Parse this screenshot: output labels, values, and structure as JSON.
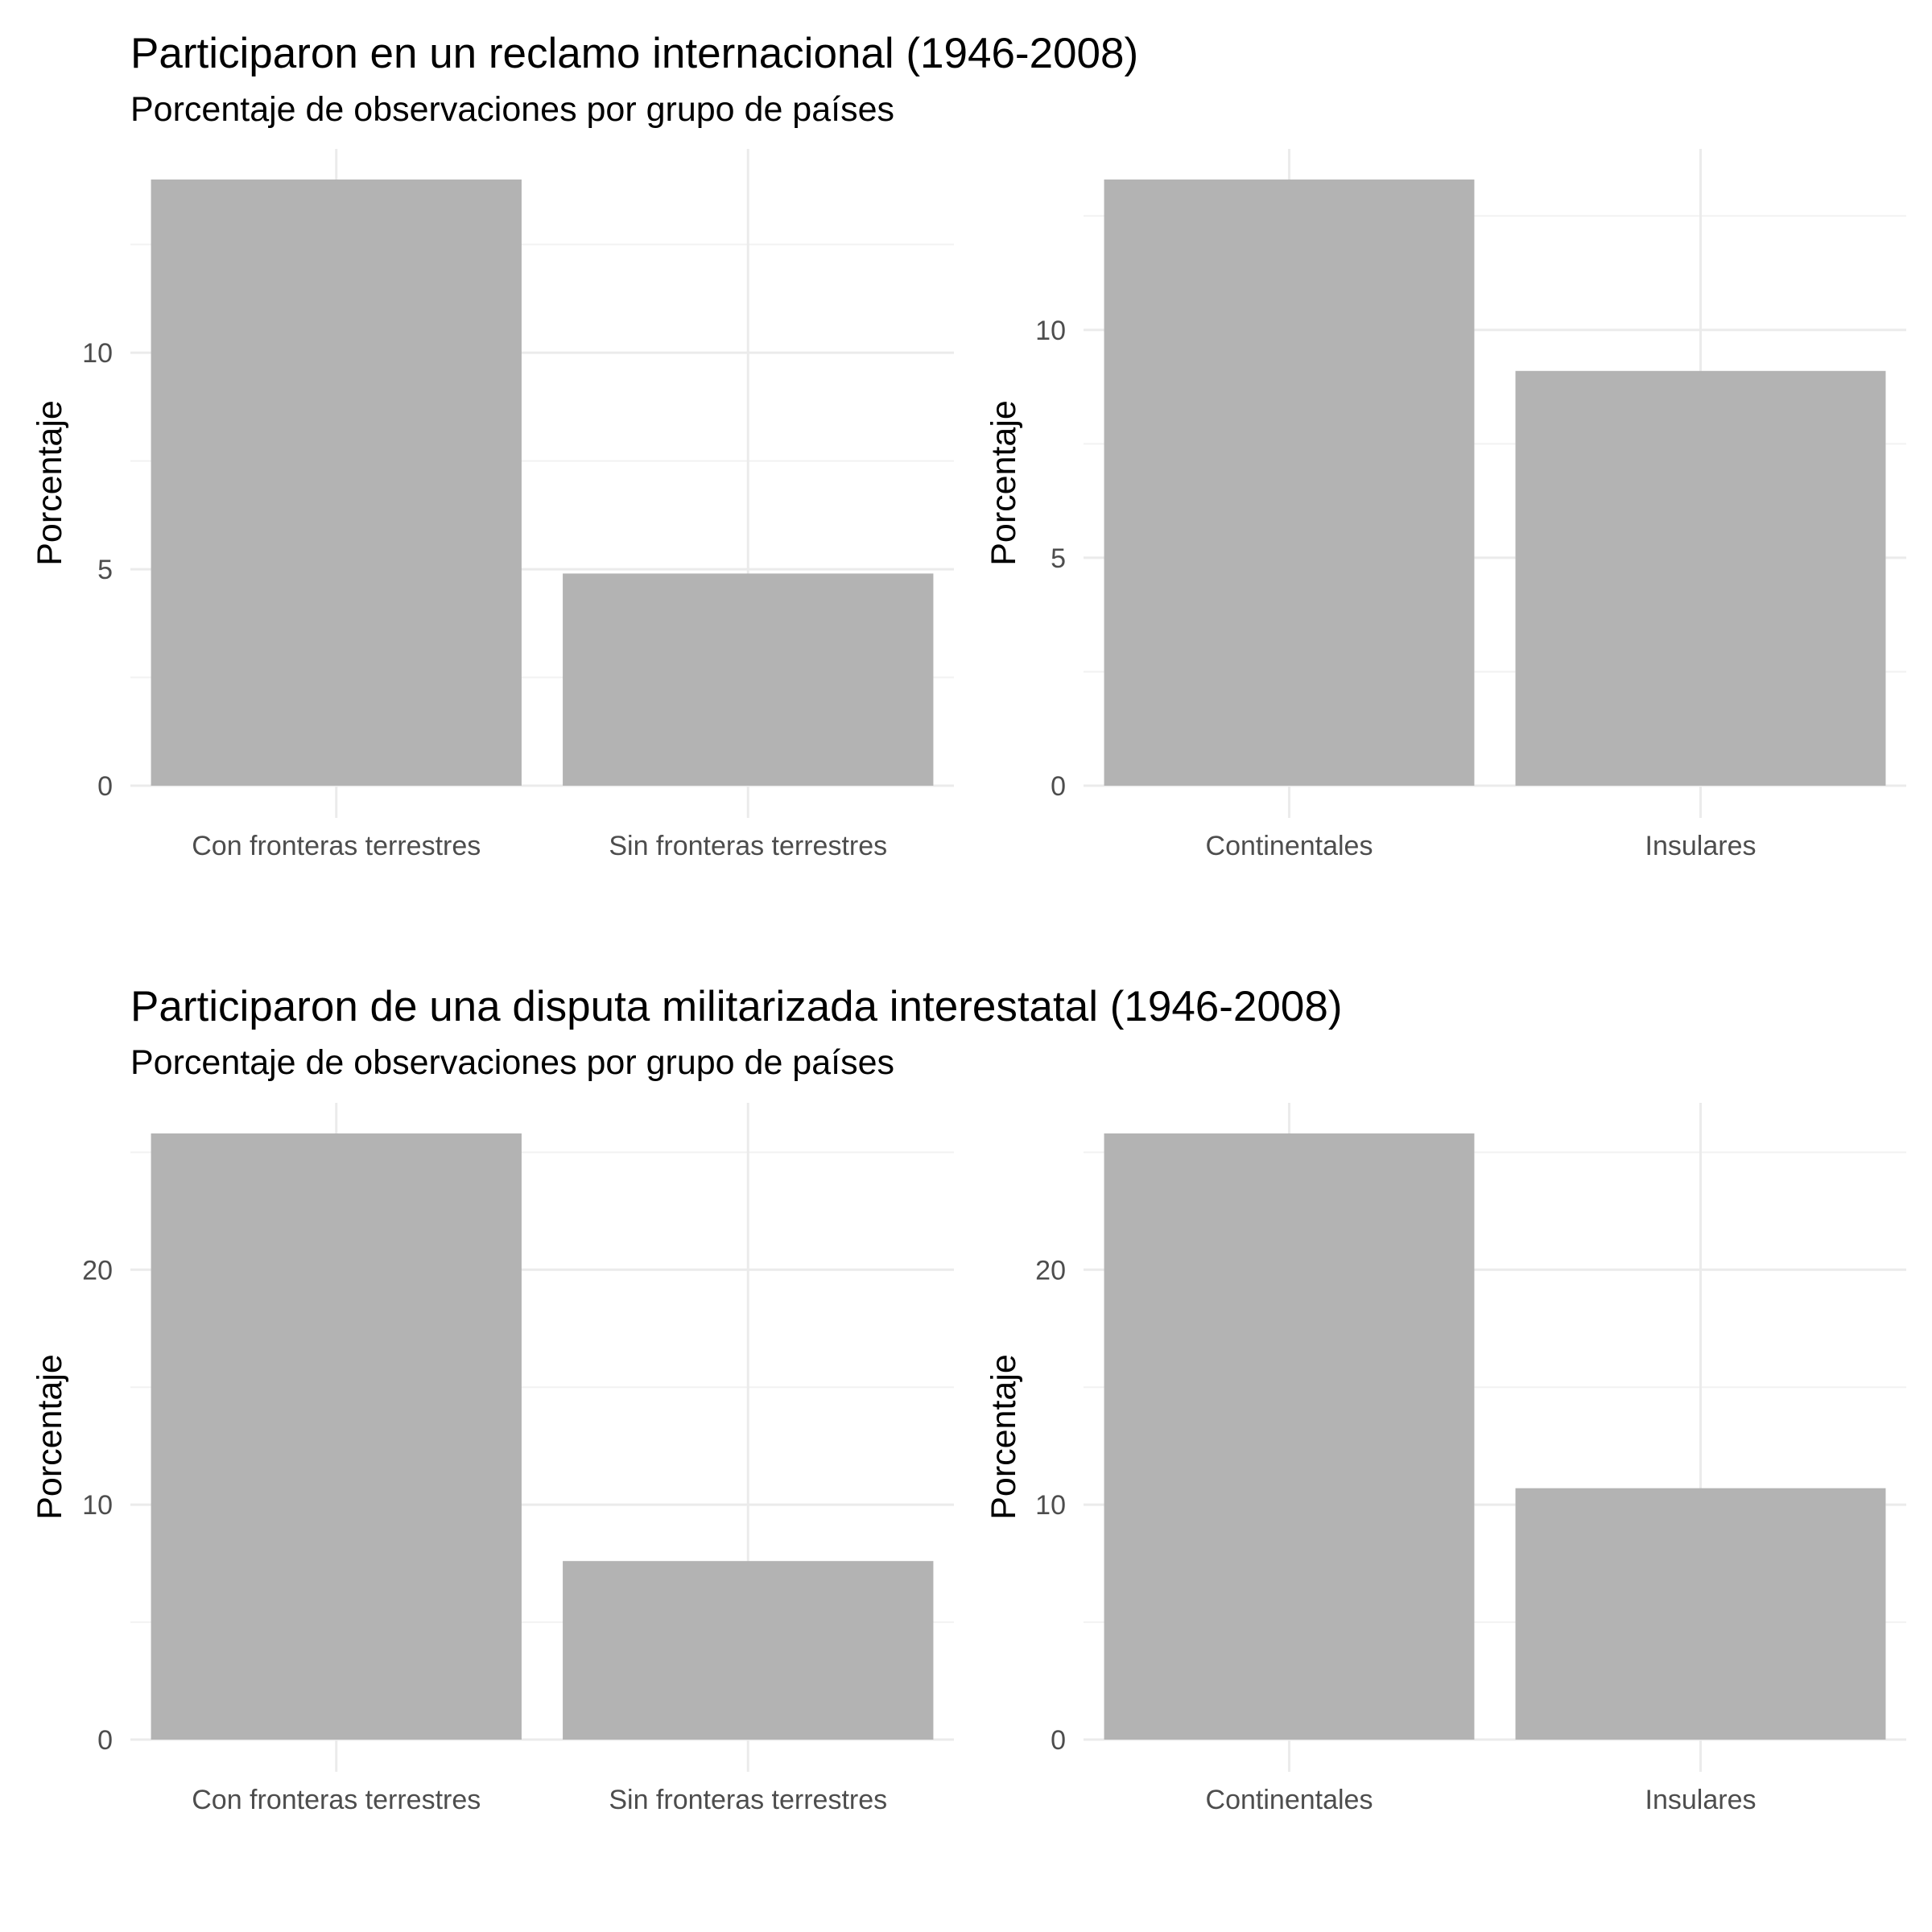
{
  "sections": [
    {
      "title": "Participaron en un reclamo internacional (1946-2008)",
      "subtitle": "Porcentaje de observaciones por grupo de países"
    },
    {
      "title": "Participaron de una disputa militarizada interestatal (1946-2008)",
      "subtitle": "Porcentaje de observaciones por grupo de países"
    }
  ],
  "chart_data": [
    {
      "type": "bar",
      "categories": [
        "Con fronteras terrestres",
        "Sin fronteras terrestres"
      ],
      "values": [
        14.0,
        4.9
      ],
      "ylabel": "Porcentaje",
      "ylim": [
        0,
        14.0
      ],
      "yticks": [
        0,
        5,
        10
      ],
      "grid": true,
      "bar_color": "#b3b3b3"
    },
    {
      "type": "bar",
      "categories": [
        "Continentales",
        "Insulares"
      ],
      "values": [
        13.3,
        9.1
      ],
      "ylabel": "Porcentaje",
      "ylim": [
        0,
        13.3
      ],
      "yticks": [
        0,
        5,
        10
      ],
      "grid": true,
      "bar_color": "#b3b3b3"
    },
    {
      "type": "bar",
      "categories": [
        "Con fronteras terrestres",
        "Sin fronteras terrestres"
      ],
      "values": [
        25.8,
        7.6
      ],
      "ylabel": "Porcentaje",
      "ylim": [
        0,
        25.8
      ],
      "yticks": [
        0,
        10,
        20
      ],
      "grid": true,
      "bar_color": "#b3b3b3"
    },
    {
      "type": "bar",
      "categories": [
        "Continentales",
        "Insulares"
      ],
      "values": [
        25.8,
        10.7
      ],
      "ylabel": "Porcentaje",
      "ylim": [
        0,
        25.8
      ],
      "yticks": [
        0,
        10,
        20
      ],
      "grid": true,
      "bar_color": "#b3b3b3"
    }
  ]
}
